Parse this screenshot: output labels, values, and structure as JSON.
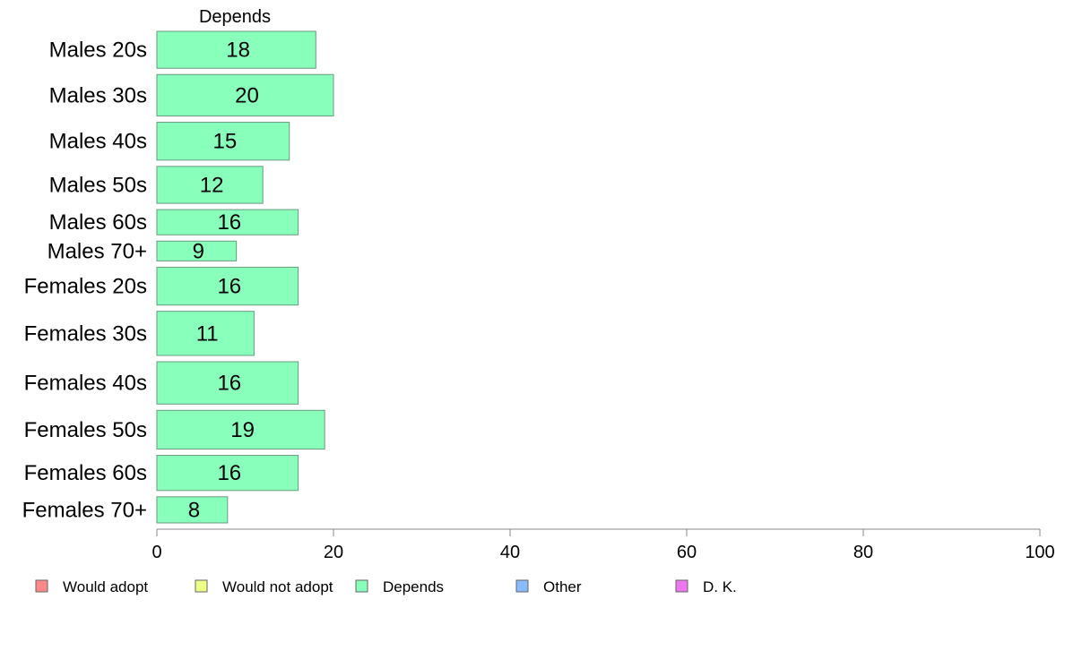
{
  "chart_data": {
    "type": "bar",
    "orientation": "horizontal",
    "panel_title": "Depends",
    "categories": [
      "Males 20s",
      "Males 30s",
      "Males 40s",
      "Males 50s",
      "Males 60s",
      "Males 70+",
      "Females 20s",
      "Females 30s",
      "Females 40s",
      "Females 50s",
      "Females 60s",
      "Females 70+"
    ],
    "category_weights": [
      41,
      46,
      42,
      41,
      28,
      22,
      42,
      49,
      47,
      43,
      39,
      29
    ],
    "series": [
      {
        "name": "Depends",
        "color": "#88ffbb",
        "values": [
          18,
          20,
          15,
          12,
          16,
          9,
          16,
          11,
          16,
          19,
          16,
          8
        ]
      }
    ],
    "xlim": [
      0,
      100
    ],
    "xticks": [
      0,
      20,
      40,
      60,
      80,
      100
    ],
    "grid": false,
    "legend": {
      "placement": "bottom",
      "items": [
        {
          "label": "Would adopt",
          "color": "#ff8888"
        },
        {
          "label": "Would not adopt",
          "color": "#eeff88"
        },
        {
          "label": "Depends",
          "color": "#88ffbb"
        },
        {
          "label": "Other",
          "color": "#88bbff"
        },
        {
          "label": "D. K.",
          "color": "#ee77ee"
        }
      ]
    }
  }
}
